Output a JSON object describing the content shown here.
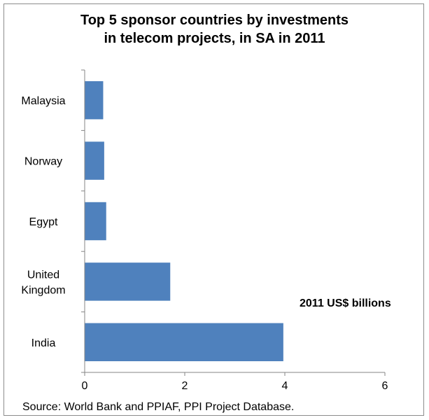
{
  "chart_data": {
    "type": "bar",
    "orientation": "horizontal",
    "title_lines": [
      "Top 5 sponsor countries by investments",
      "in telecom projects, in SA in 2011"
    ],
    "categories": [
      [
        "Malaysia"
      ],
      [
        "Norway"
      ],
      [
        "Egypt"
      ],
      [
        "United",
        "Kingdom"
      ],
      [
        "India"
      ]
    ],
    "values": [
      0.37,
      0.39,
      0.43,
      1.71,
      3.97
    ],
    "xlim": [
      0,
      6
    ],
    "xticks": [
      "0",
      "2",
      "4",
      "6"
    ],
    "xtick_values": [
      0,
      2,
      4,
      6
    ],
    "annotation": "2011 US$ billions",
    "source": "Source:  World Bank and PPIAF, PPI Project Database.",
    "grid": false,
    "legend": "none",
    "bar_color": "#4f81bd",
    "axis_color": "#868686"
  }
}
